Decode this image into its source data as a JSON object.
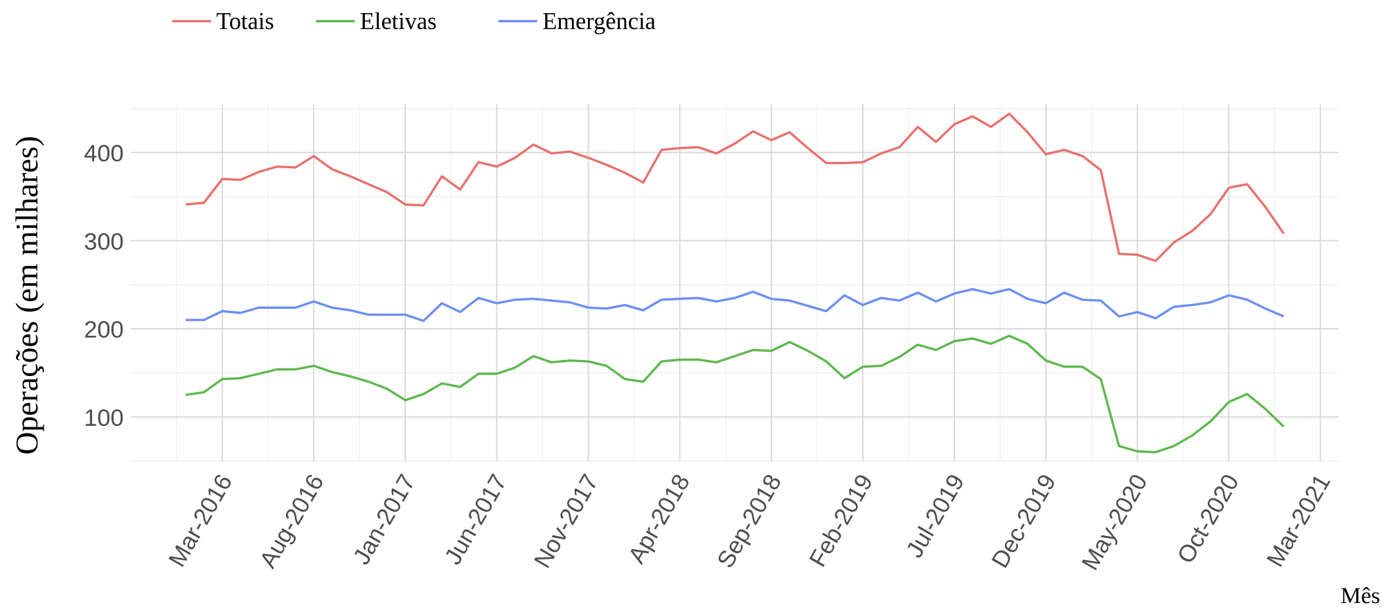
{
  "chart_data": {
    "type": "line",
    "ylabel": "Operações (em milhares)",
    "xlabel": "Mês",
    "x": [
      "2016-01",
      "2016-02",
      "2016-03",
      "2016-04",
      "2016-05",
      "2016-06",
      "2016-07",
      "2016-08",
      "2016-09",
      "2016-10",
      "2016-11",
      "2016-12",
      "2017-01",
      "2017-02",
      "2017-03",
      "2017-04",
      "2017-05",
      "2017-06",
      "2017-07",
      "2017-08",
      "2017-09",
      "2017-10",
      "2017-11",
      "2017-12",
      "2018-01",
      "2018-02",
      "2018-03",
      "2018-04",
      "2018-05",
      "2018-06",
      "2018-07",
      "2018-08",
      "2018-09",
      "2018-10",
      "2018-11",
      "2018-12",
      "2019-01",
      "2019-02",
      "2019-03",
      "2019-04",
      "2019-05",
      "2019-06",
      "2019-07",
      "2019-08",
      "2019-09",
      "2019-10",
      "2019-11",
      "2019-12",
      "2020-01",
      "2020-02",
      "2020-03",
      "2020-04",
      "2020-05",
      "2020-06",
      "2020-07",
      "2020-08",
      "2020-09",
      "2020-10",
      "2020-11",
      "2020-12",
      "2021-01"
    ],
    "series": [
      {
        "name": "Totais",
        "color": "#e8706c",
        "values": [
          341,
          343,
          370,
          369,
          378,
          384,
          383,
          396,
          381,
          373,
          364,
          355,
          341,
          340,
          373,
          358,
          389,
          384,
          394,
          409,
          399,
          401,
          394,
          386,
          377,
          366,
          403,
          405,
          406,
          399,
          410,
          424,
          414,
          423,
          405,
          388,
          388,
          389,
          399,
          406,
          429,
          412,
          432,
          441,
          429,
          444,
          423,
          398,
          403,
          396,
          380,
          285,
          284,
          277,
          298,
          311,
          330,
          360,
          364,
          338,
          308
        ]
      },
      {
        "name": "Eletivas",
        "color": "#5db84e",
        "values": [
          125,
          128,
          143,
          144,
          149,
          154,
          154,
          158,
          151,
          146,
          140,
          132,
          119,
          126,
          138,
          134,
          149,
          149,
          156,
          169,
          162,
          164,
          163,
          158,
          143,
          140,
          163,
          165,
          165,
          162,
          169,
          176,
          175,
          185,
          175,
          163,
          144,
          157,
          158,
          168,
          182,
          176,
          186,
          189,
          183,
          192,
          183,
          164,
          157,
          157,
          143,
          67,
          61,
          60,
          67,
          79,
          95,
          117,
          126,
          109,
          89
        ]
      },
      {
        "name": "Emergência",
        "color": "#6b8ef5",
        "values": [
          210,
          210,
          220,
          218,
          224,
          224,
          224,
          231,
          224,
          221,
          216,
          216,
          216,
          209,
          229,
          219,
          235,
          229,
          233,
          234,
          232,
          230,
          224,
          223,
          227,
          221,
          233,
          234,
          235,
          231,
          235,
          242,
          234,
          232,
          226,
          220,
          238,
          227,
          235,
          232,
          241,
          231,
          240,
          245,
          240,
          245,
          234,
          229,
          241,
          233,
          232,
          214,
          219,
          212,
          225,
          227,
          230,
          238,
          233,
          223,
          214
        ]
      }
    ],
    "xlim": [
      "2015-10",
      "2021-04"
    ],
    "xticks": [
      {
        "value": "2016-03",
        "label": "Mar-2016"
      },
      {
        "value": "2016-08",
        "label": "Aug-2016"
      },
      {
        "value": "2017-01",
        "label": "Jan-2017"
      },
      {
        "value": "2017-06",
        "label": "Jun-2017"
      },
      {
        "value": "2017-11",
        "label": "Nov-2017"
      },
      {
        "value": "2018-04",
        "label": "Apr-2018"
      },
      {
        "value": "2018-09",
        "label": "Sep-2018"
      },
      {
        "value": "2019-02",
        "label": "Feb-2019"
      },
      {
        "value": "2019-07",
        "label": "Jul-2019"
      },
      {
        "value": "2019-12",
        "label": "Dec-2019"
      },
      {
        "value": "2020-05",
        "label": "May-2020"
      },
      {
        "value": "2020-10",
        "label": "Oct-2020"
      },
      {
        "value": "2021-03",
        "label": "Mar-2021"
      }
    ],
    "ylim": [
      50,
      455
    ],
    "yticks": [
      100,
      200,
      300,
      400
    ],
    "grid": true,
    "legend": "top"
  }
}
